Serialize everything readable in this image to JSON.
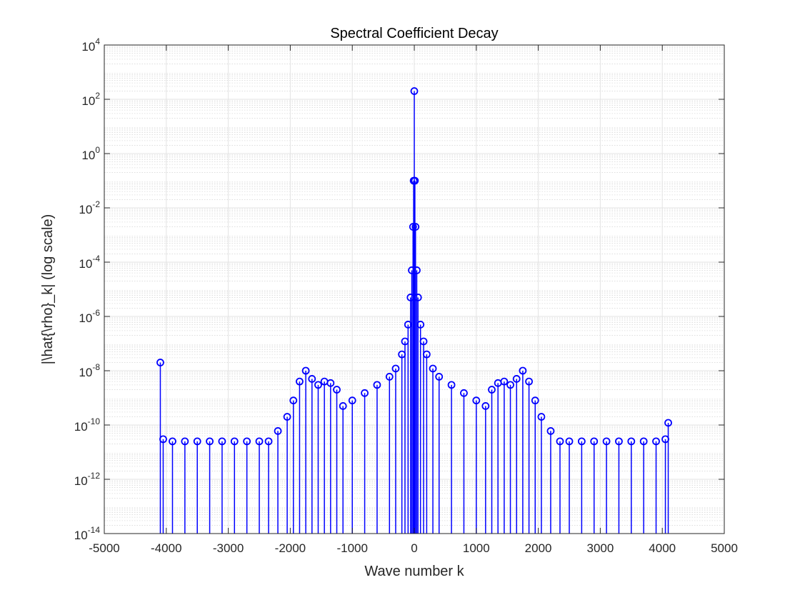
{
  "chart_data": {
    "type": "scatter",
    "title": "Spectral Coefficient Decay",
    "xlabel": "Wave number k",
    "ylabel": "|\\hat{\\rho}_k| (log scale)",
    "xlim": [
      -5000,
      5000
    ],
    "ylim": [
      1e-14,
      10000
    ],
    "yscale": "log",
    "grid": true,
    "minor_grid": true,
    "x_ticks": [
      "-5000",
      "-4000",
      "-3000",
      "-2000",
      "-1000",
      "0",
      "1000",
      "2000",
      "3000",
      "4000",
      "5000"
    ],
    "y_ticks": [
      {
        "base": "10",
        "exp": "-14"
      },
      {
        "base": "10",
        "exp": "-12"
      },
      {
        "base": "10",
        "exp": "-10"
      },
      {
        "base": "10",
        "exp": "-8"
      },
      {
        "base": "10",
        "exp": "-6"
      },
      {
        "base": "10",
        "exp": "-4"
      },
      {
        "base": "10",
        "exp": "-2"
      },
      {
        "base": "10",
        "exp": "0"
      },
      {
        "base": "10",
        "exp": "2"
      },
      {
        "base": "10",
        "exp": "4"
      }
    ],
    "marker": "circle",
    "stem": true,
    "series_color": "#0000ff",
    "series": [
      {
        "x": [
          -4096,
          -4050,
          -3900,
          -3700,
          -3500,
          -3300,
          -3100,
          -2900,
          -2700,
          -2500,
          -2350,
          -2200,
          -2050,
          -1950,
          -1850,
          -1750,
          -1650,
          -1550,
          -1450,
          -1350,
          -1250,
          -1150,
          -1000,
          -800,
          -600,
          -400,
          -300,
          -200,
          -150,
          -100,
          -60,
          -40,
          -20,
          -10,
          0,
          10,
          20,
          40,
          60,
          100,
          150,
          200,
          300,
          400,
          600,
          800,
          1000,
          1150,
          1250,
          1350,
          1450,
          1550,
          1650,
          1750,
          1850,
          1950,
          2050,
          2200,
          2350,
          2500,
          2700,
          2900,
          3100,
          3300,
          3500,
          3700,
          3900,
          4050,
          4096
        ],
        "y": [
          2e-08,
          3e-11,
          2.5e-11,
          2.5e-11,
          2.5e-11,
          2.5e-11,
          2.5e-11,
          2.5e-11,
          2.5e-11,
          2.5e-11,
          2.5e-11,
          6e-11,
          2e-10,
          8e-10,
          4e-09,
          1e-08,
          5e-09,
          3e-09,
          4e-09,
          3.5e-09,
          2e-09,
          5e-10,
          8e-10,
          1.5e-09,
          3e-09,
          6e-09,
          1.2e-08,
          4e-08,
          1.2e-07,
          5e-07,
          5e-06,
          5e-05,
          0.002,
          0.1,
          200,
          0.1,
          0.002,
          5e-05,
          5e-06,
          5e-07,
          1.2e-07,
          4e-08,
          1.2e-08,
          6e-09,
          3e-09,
          1.5e-09,
          8e-10,
          5e-10,
          2e-09,
          3.5e-09,
          4e-09,
          3e-09,
          5e-09,
          1e-08,
          4e-09,
          8e-10,
          2e-10,
          6e-11,
          2.5e-11,
          2.5e-11,
          2.5e-11,
          2.5e-11,
          2.5e-11,
          2.5e-11,
          2.5e-11,
          2.5e-11,
          2.5e-11,
          3e-11,
          1.2e-10
        ]
      }
    ]
  }
}
